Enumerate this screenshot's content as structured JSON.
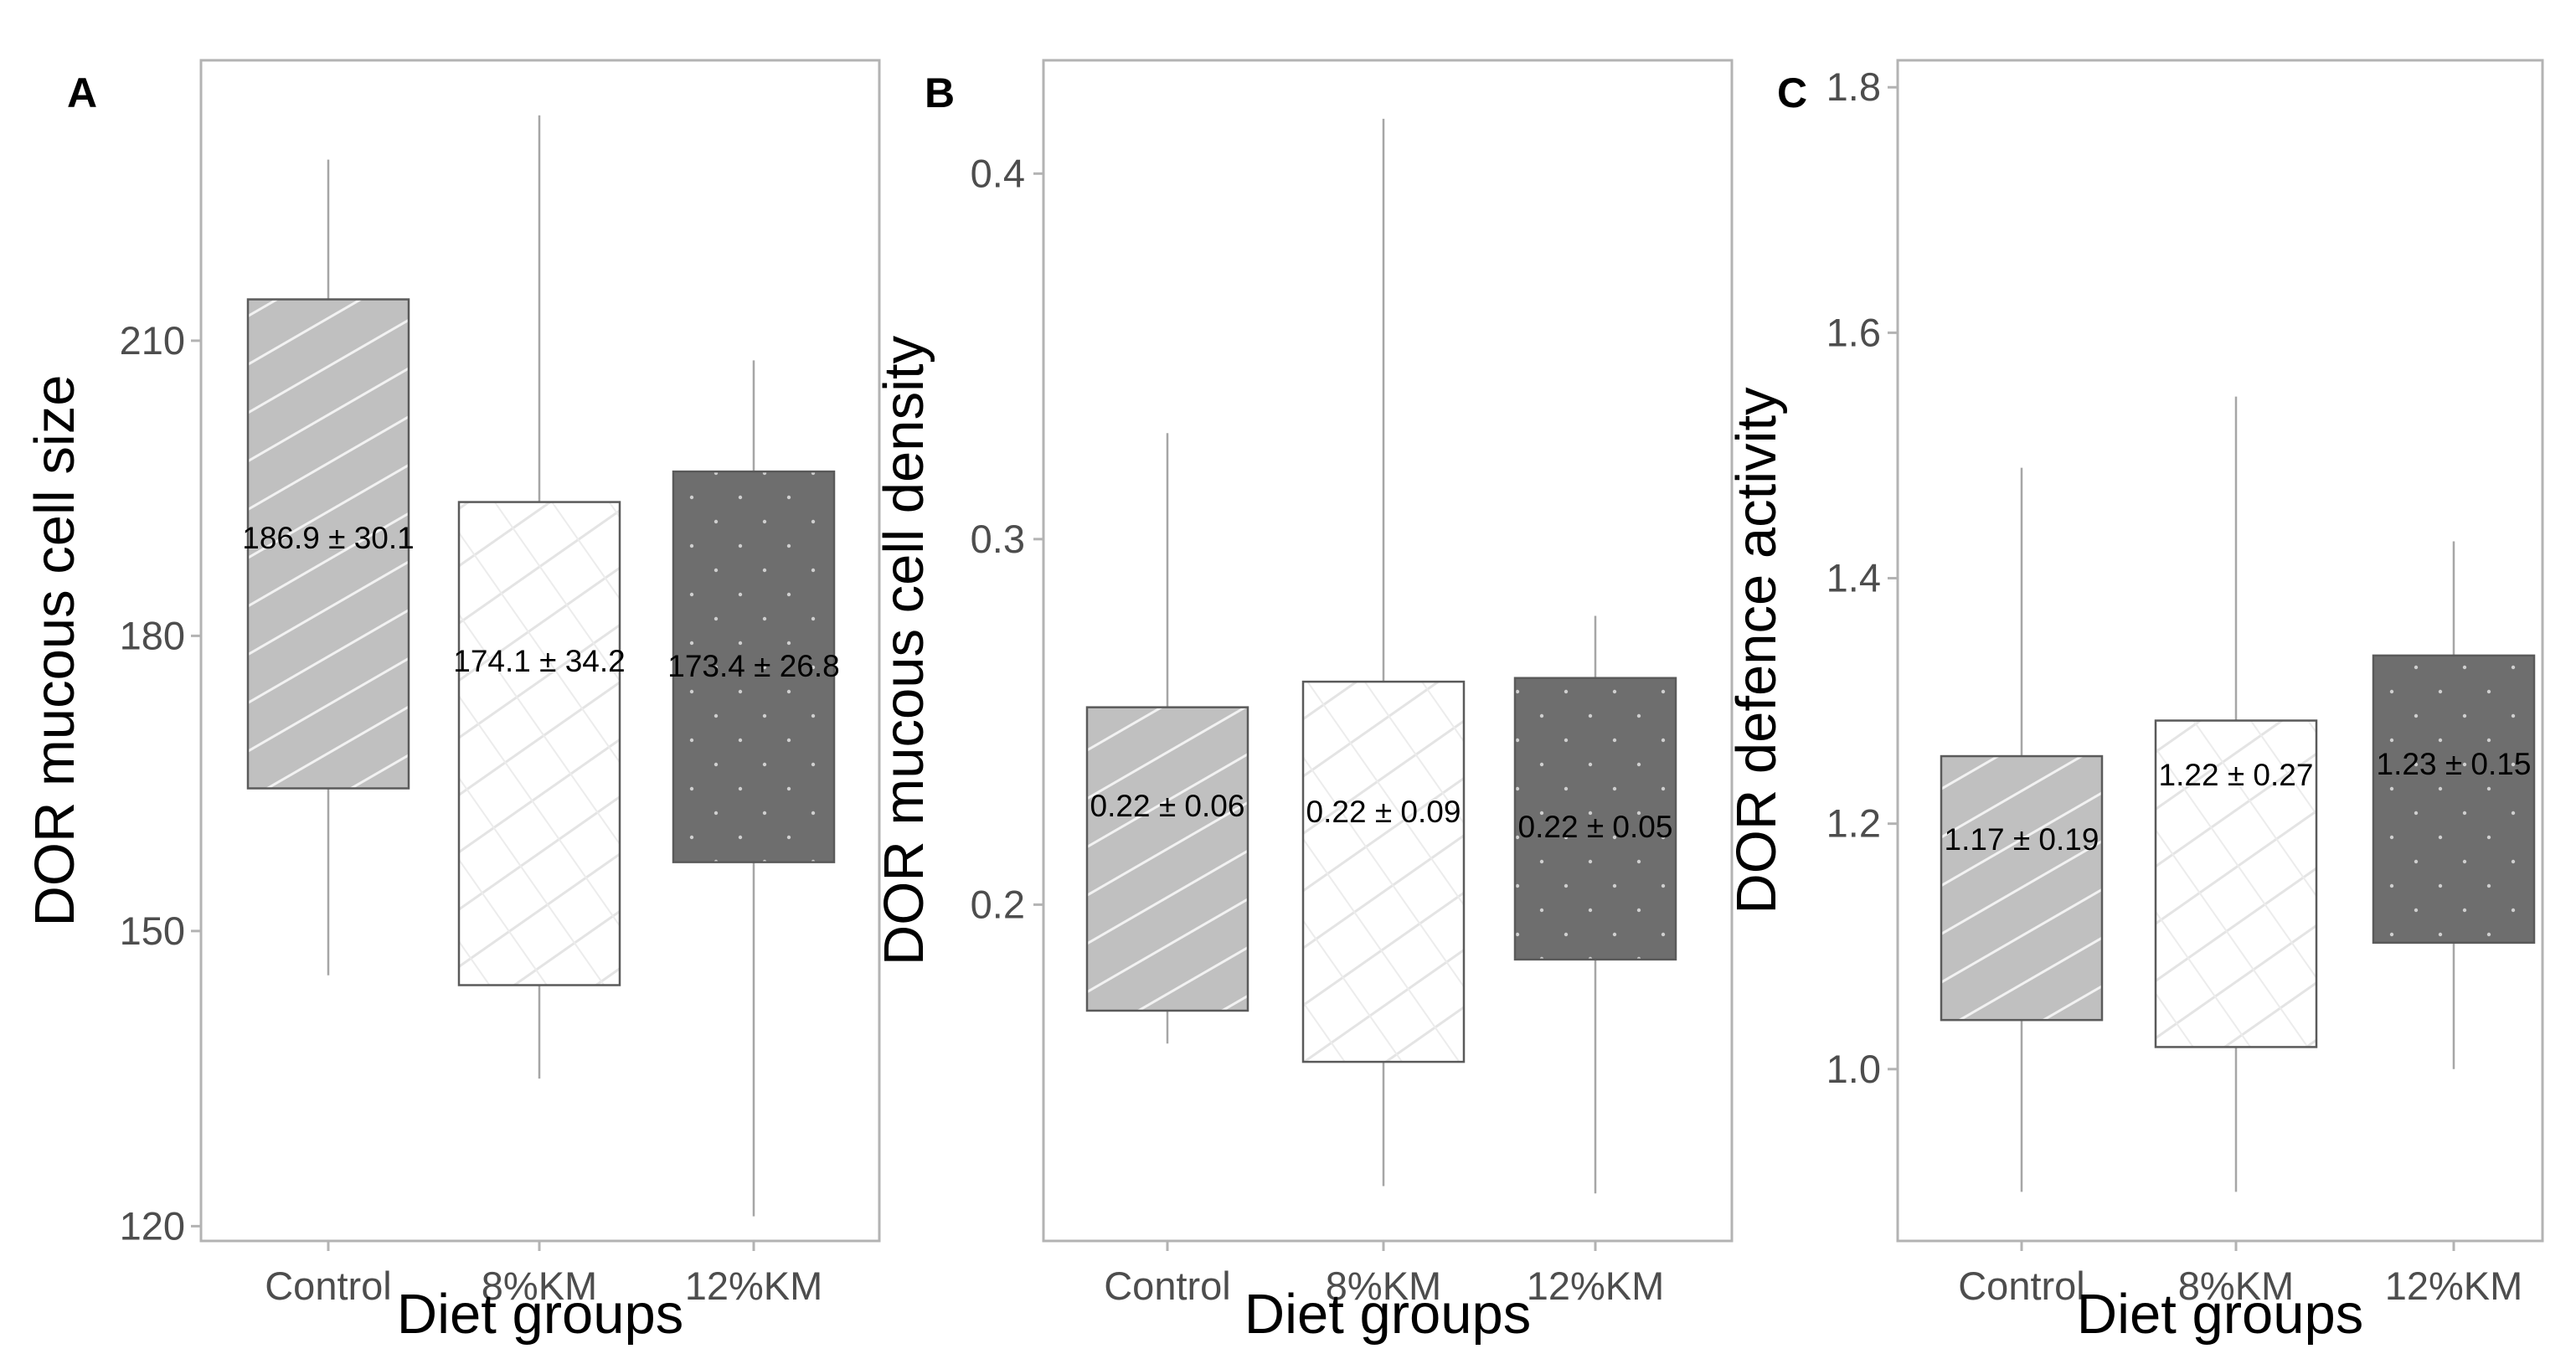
{
  "chart_data": [
    {
      "type": "box",
      "panel": "A",
      "title": "",
      "xlabel": "Diet groups",
      "ylabel": "DOR mucous cell size",
      "ylim": [
        118.5,
        238.5
      ],
      "yticks": [
        120,
        150,
        180,
        210
      ],
      "grid": false,
      "categories": [
        "Control",
        "8%KM",
        "12%KM"
      ],
      "boxes": [
        {
          "category": "Control",
          "whisker_low": 145.5,
          "q1": 164.5,
          "q3": 214.2,
          "whisker_high": 228.4,
          "fill": "hatch-diagonal-light",
          "label": "186.9 ± 30.1"
        },
        {
          "category": "8%KM",
          "whisker_low": 135.0,
          "q1": 144.5,
          "q3": 193.6,
          "whisker_high": 232.9,
          "fill": "hatch-crosshatch-white",
          "label": "174.1 ± 34.2"
        },
        {
          "category": "12%KM",
          "whisker_low": 121.0,
          "q1": 157.0,
          "q3": 196.7,
          "whisker_high": 208.0,
          "fill": "dots-dark",
          "label": "173.4 ± 26.8"
        }
      ]
    },
    {
      "type": "box",
      "panel": "B",
      "title": "",
      "xlabel": "Diet groups",
      "ylabel": "DOR mucous cell density",
      "ylim": [
        0.108,
        0.431
      ],
      "yticks": [
        0.2,
        0.3,
        0.4
      ],
      "grid": false,
      "categories": [
        "Control",
        "8%KM",
        "12%KM"
      ],
      "boxes": [
        {
          "category": "Control",
          "whisker_low": 0.162,
          "q1": 0.171,
          "q3": 0.254,
          "whisker_high": 0.329,
          "fill": "hatch-diagonal-light",
          "label": "0.22 ± 0.06"
        },
        {
          "category": "8%KM",
          "whisker_low": 0.123,
          "q1": 0.157,
          "q3": 0.261,
          "whisker_high": 0.415,
          "fill": "hatch-crosshatch-white",
          "label": "0.22 ± 0.09"
        },
        {
          "category": "12%KM",
          "whisker_low": 0.121,
          "q1": 0.185,
          "q3": 0.262,
          "whisker_high": 0.279,
          "fill": "dots-dark",
          "label": "0.22 ± 0.05"
        }
      ]
    },
    {
      "type": "box",
      "panel": "C",
      "title": "",
      "xlabel": "Diet groups",
      "ylabel": "DOR defence activity",
      "ylim": [
        0.86,
        1.822
      ],
      "yticks": [
        1.0,
        1.2,
        1.4,
        1.6,
        1.8
      ],
      "grid": false,
      "categories": [
        "Control",
        "8%KM",
        "12%KM"
      ],
      "boxes": [
        {
          "category": "Control",
          "whisker_low": 0.9,
          "q1": 1.04,
          "q3": 1.255,
          "whisker_high": 1.49,
          "fill": "hatch-diagonal-light",
          "label": "1.17 ± 0.19"
        },
        {
          "category": "8%KM",
          "whisker_low": 0.9,
          "q1": 1.018,
          "q3": 1.284,
          "whisker_high": 1.548,
          "fill": "hatch-crosshatch-white",
          "label": "1.22 ± 0.27"
        },
        {
          "category": "12%KM",
          "whisker_low": 1.0,
          "q1": 1.103,
          "q3": 1.337,
          "whisker_high": 1.43,
          "fill": "dots-dark",
          "label": "1.23 ± 0.15"
        }
      ]
    }
  ],
  "colors": {
    "panel_border": "#b3b3b3",
    "whisker": "#a6a6a6",
    "box_edge": "#5a5a5a",
    "fill_light": "#c0c0c0",
    "fill_white": "#ffffff",
    "fill_dark": "#6e6e6e"
  }
}
